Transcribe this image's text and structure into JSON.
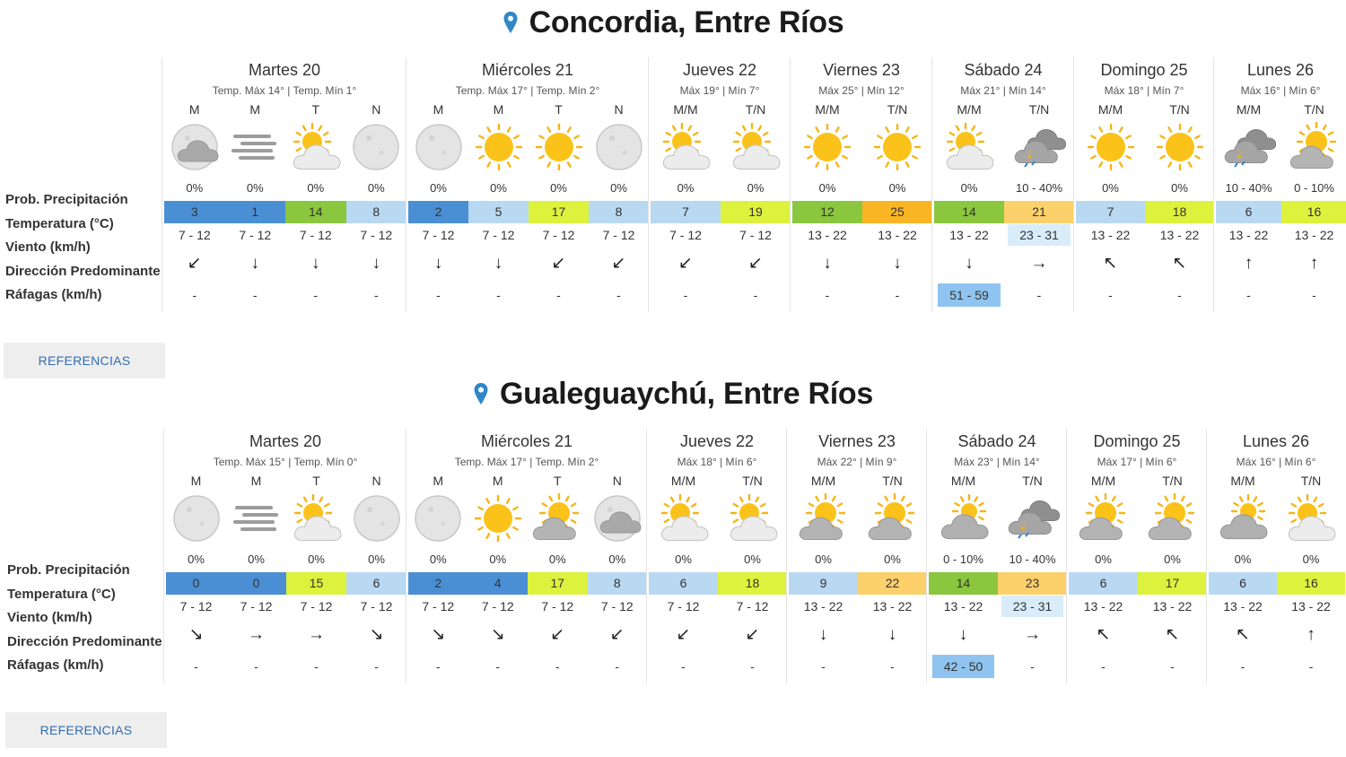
{
  "reference_label": "REFERENCIAS",
  "row_labels": [
    "Prob. Precipitación",
    "Temperatura (°C)",
    "Viento (km/h)",
    "Dirección Predominante",
    "Ráfagas (km/h)"
  ],
  "colors": {
    "temp_cold": "#4a8fd4",
    "temp_cool": "#b9d8f2",
    "temp_green": "#8bc63f",
    "temp_lime": "#ddf23c",
    "temp_orange": "#f9b523",
    "temp_amber": "#fcd06a",
    "wind_hi": "#d9ecfa",
    "gust_hi": "#8ec4ef",
    "pin": "#2f86c8"
  },
  "locations": [
    {
      "name": "Concordia, Entre Ríos",
      "days": [
        {
          "name": "Martes 20",
          "sub": "Temp. Máx 14° | Temp. Mín 1°",
          "periods": [
            {
              "label": "M",
              "icon": "night-cloudy",
              "prob": "0%",
              "temp": "3",
              "tcol": "temp_cold",
              "wind": "7 - 12",
              "dir": "↙",
              "gust": "-"
            },
            {
              "label": "M",
              "icon": "fog",
              "prob": "0%",
              "temp": "1",
              "tcol": "temp_cold",
              "wind": "7 - 12",
              "dir": "↓",
              "gust": "-"
            },
            {
              "label": "T",
              "icon": "sun-cloud",
              "prob": "0%",
              "temp": "14",
              "tcol": "temp_green",
              "wind": "7 - 12",
              "dir": "↓",
              "gust": "-"
            },
            {
              "label": "N",
              "icon": "moon",
              "prob": "0%",
              "temp": "8",
              "tcol": "temp_cool",
              "wind": "7 - 12",
              "dir": "↓",
              "gust": "-"
            }
          ]
        },
        {
          "name": "Miércoles 21",
          "sub": "Temp. Máx 17° | Temp. Mín 2°",
          "periods": [
            {
              "label": "M",
              "icon": "moon",
              "prob": "0%",
              "temp": "2",
              "tcol": "temp_cold",
              "wind": "7 - 12",
              "dir": "↓",
              "gust": "-"
            },
            {
              "label": "M",
              "icon": "sun",
              "prob": "0%",
              "temp": "5",
              "tcol": "temp_cool",
              "wind": "7 - 12",
              "dir": "↓",
              "gust": "-"
            },
            {
              "label": "T",
              "icon": "sun",
              "prob": "0%",
              "temp": "17",
              "tcol": "temp_lime",
              "wind": "7 - 12",
              "dir": "↙",
              "gust": "-"
            },
            {
              "label": "N",
              "icon": "moon",
              "prob": "0%",
              "temp": "8",
              "tcol": "temp_cool",
              "wind": "7 - 12",
              "dir": "↙",
              "gust": "-"
            }
          ]
        },
        {
          "name": "Jueves 22",
          "sub": "Máx 19° | Mín 7°",
          "periods": [
            {
              "label": "M/M",
              "icon": "sun-cloud",
              "prob": "0%",
              "temp": "7",
              "tcol": "temp_cool",
              "wind": "7 - 12",
              "dir": "↙",
              "gust": "-"
            },
            {
              "label": "T/N",
              "icon": "sun-cloud",
              "prob": "0%",
              "temp": "19",
              "tcol": "temp_lime",
              "wind": "7 - 12",
              "dir": "↙",
              "gust": "-"
            }
          ]
        },
        {
          "name": "Viernes 23",
          "sub": "Máx 25° | Mín 12°",
          "periods": [
            {
              "label": "M/M",
              "icon": "sun",
              "prob": "0%",
              "temp": "12",
              "tcol": "temp_green",
              "wind": "13 - 22",
              "dir": "↓",
              "gust": "-"
            },
            {
              "label": "T/N",
              "icon": "sun",
              "prob": "0%",
              "temp": "25",
              "tcol": "temp_orange",
              "wind": "13 - 22",
              "dir": "↓",
              "gust": "-"
            }
          ]
        },
        {
          "name": "Sábado 24",
          "sub": "Máx 21° | Mín 14°",
          "periods": [
            {
              "label": "M/M",
              "icon": "sun-cloud",
              "prob": "0%",
              "temp": "14",
              "tcol": "temp_green",
              "wind": "13 - 22",
              "dir": "↓",
              "gust": "51 - 59",
              "ghi": true
            },
            {
              "label": "T/N",
              "icon": "storm",
              "prob": "10 - 40%",
              "temp": "21",
              "tcol": "temp_amber",
              "wind": "23 - 31",
              "whi": true,
              "dir": "→",
              "gust": "-"
            }
          ]
        },
        {
          "name": "Domingo 25",
          "sub": "Máx 18° | Mín 7°",
          "periods": [
            {
              "label": "M/M",
              "icon": "sun",
              "prob": "0%",
              "temp": "7",
              "tcol": "temp_cool",
              "wind": "13 - 22",
              "dir": "↖",
              "gust": "-"
            },
            {
              "label": "T/N",
              "icon": "sun",
              "prob": "0%",
              "temp": "18",
              "tcol": "temp_lime",
              "wind": "13 - 22",
              "dir": "↖",
              "gust": "-"
            }
          ]
        },
        {
          "name": "Lunes 26",
          "sub": "Máx 16° | Mín 6°",
          "periods": [
            {
              "label": "M/M",
              "icon": "storm",
              "prob": "10 - 40%",
              "temp": "6",
              "tcol": "temp_cool",
              "wind": "13 - 22",
              "dir": "↑",
              "gust": "-"
            },
            {
              "label": "T/N",
              "icon": "sun-cloud-grey",
              "prob": "0 - 10%",
              "temp": "16",
              "tcol": "temp_lime",
              "wind": "13 - 22",
              "dir": "↑",
              "gust": "-"
            }
          ]
        }
      ]
    },
    {
      "name": "Gualeguaychú, Entre Ríos",
      "days": [
        {
          "name": "Martes 20",
          "sub": "Temp. Máx 15° | Temp. Mín 0°",
          "periods": [
            {
              "label": "M",
              "icon": "moon",
              "prob": "0%",
              "temp": "0",
              "tcol": "temp_cold",
              "wind": "7 - 12",
              "dir": "↘",
              "gust": "-"
            },
            {
              "label": "M",
              "icon": "fog",
              "prob": "0%",
              "temp": "0",
              "tcol": "temp_cold",
              "wind": "7 - 12",
              "dir": "→",
              "gust": "-"
            },
            {
              "label": "T",
              "icon": "sun-cloud",
              "prob": "0%",
              "temp": "15",
              "tcol": "temp_lime",
              "wind": "7 - 12",
              "dir": "→",
              "gust": "-"
            },
            {
              "label": "N",
              "icon": "moon",
              "prob": "0%",
              "temp": "6",
              "tcol": "temp_cool",
              "wind": "7 - 12",
              "dir": "↘",
              "gust": "-"
            }
          ]
        },
        {
          "name": "Miércoles 21",
          "sub": "Temp. Máx 17° | Temp. Mín 2°",
          "periods": [
            {
              "label": "M",
              "icon": "moon",
              "prob": "0%",
              "temp": "2",
              "tcol": "temp_cold",
              "wind": "7 - 12",
              "dir": "↘",
              "gust": "-"
            },
            {
              "label": "M",
              "icon": "sun",
              "prob": "0%",
              "temp": "4",
              "tcol": "temp_cold",
              "wind": "7 - 12",
              "dir": "↘",
              "gust": "-"
            },
            {
              "label": "T",
              "icon": "sun-cloud-grey",
              "prob": "0%",
              "temp": "17",
              "tcol": "temp_lime",
              "wind": "7 - 12",
              "dir": "↙",
              "gust": "-"
            },
            {
              "label": "N",
              "icon": "night-cloudy",
              "prob": "0%",
              "temp": "8",
              "tcol": "temp_cool",
              "wind": "7 - 12",
              "dir": "↙",
              "gust": "-"
            }
          ]
        },
        {
          "name": "Jueves 22",
          "sub": "Máx 18° | Mín 6°",
          "periods": [
            {
              "label": "M/M",
              "icon": "sun-cloud",
              "prob": "0%",
              "temp": "6",
              "tcol": "temp_cool",
              "wind": "7 - 12",
              "dir": "↙",
              "gust": "-"
            },
            {
              "label": "T/N",
              "icon": "sun-cloud",
              "prob": "0%",
              "temp": "18",
              "tcol": "temp_lime",
              "wind": "7 - 12",
              "dir": "↙",
              "gust": "-"
            }
          ]
        },
        {
          "name": "Viernes 23",
          "sub": "Máx 22° | Mín 9°",
          "periods": [
            {
              "label": "M/M",
              "icon": "sun-cloud-grey",
              "prob": "0%",
              "temp": "9",
              "tcol": "temp_cool",
              "wind": "13 - 22",
              "dir": "↓",
              "gust": "-"
            },
            {
              "label": "T/N",
              "icon": "sun-cloud-grey",
              "prob": "0%",
              "temp": "22",
              "tcol": "temp_amber",
              "wind": "13 - 22",
              "dir": "↓",
              "gust": "-"
            }
          ]
        },
        {
          "name": "Sábado 24",
          "sub": "Máx 23° | Mín 14°",
          "periods": [
            {
              "label": "M/M",
              "icon": "cloud-sun-dark",
              "prob": "0 - 10%",
              "temp": "14",
              "tcol": "temp_green",
              "wind": "13 - 22",
              "dir": "↓",
              "gust": "42 - 50",
              "ghi": true
            },
            {
              "label": "T/N",
              "icon": "storm",
              "prob": "10 - 40%",
              "temp": "23",
              "tcol": "temp_amber",
              "wind": "23 - 31",
              "whi": true,
              "dir": "→",
              "gust": "-"
            }
          ]
        },
        {
          "name": "Domingo 25",
          "sub": "Máx 17° | Mín 6°",
          "periods": [
            {
              "label": "M/M",
              "icon": "sun-cloud-grey",
              "prob": "0%",
              "temp": "6",
              "tcol": "temp_cool",
              "wind": "13 - 22",
              "dir": "↖",
              "gust": "-"
            },
            {
              "label": "T/N",
              "icon": "sun-cloud-grey",
              "prob": "0%",
              "temp": "17",
              "tcol": "temp_lime",
              "wind": "13 - 22",
              "dir": "↖",
              "gust": "-"
            }
          ]
        },
        {
          "name": "Lunes 26",
          "sub": "Máx 16° | Mín 6°",
          "periods": [
            {
              "label": "M/M",
              "icon": "cloud-sun-dark",
              "prob": "0%",
              "temp": "6",
              "tcol": "temp_cool",
              "wind": "13 - 22",
              "dir": "↖",
              "gust": "-"
            },
            {
              "label": "T/N",
              "icon": "sun-cloud",
              "prob": "0%",
              "temp": "16",
              "tcol": "temp_lime",
              "wind": "13 - 22",
              "dir": "↑",
              "gust": "-"
            }
          ]
        }
      ]
    }
  ]
}
